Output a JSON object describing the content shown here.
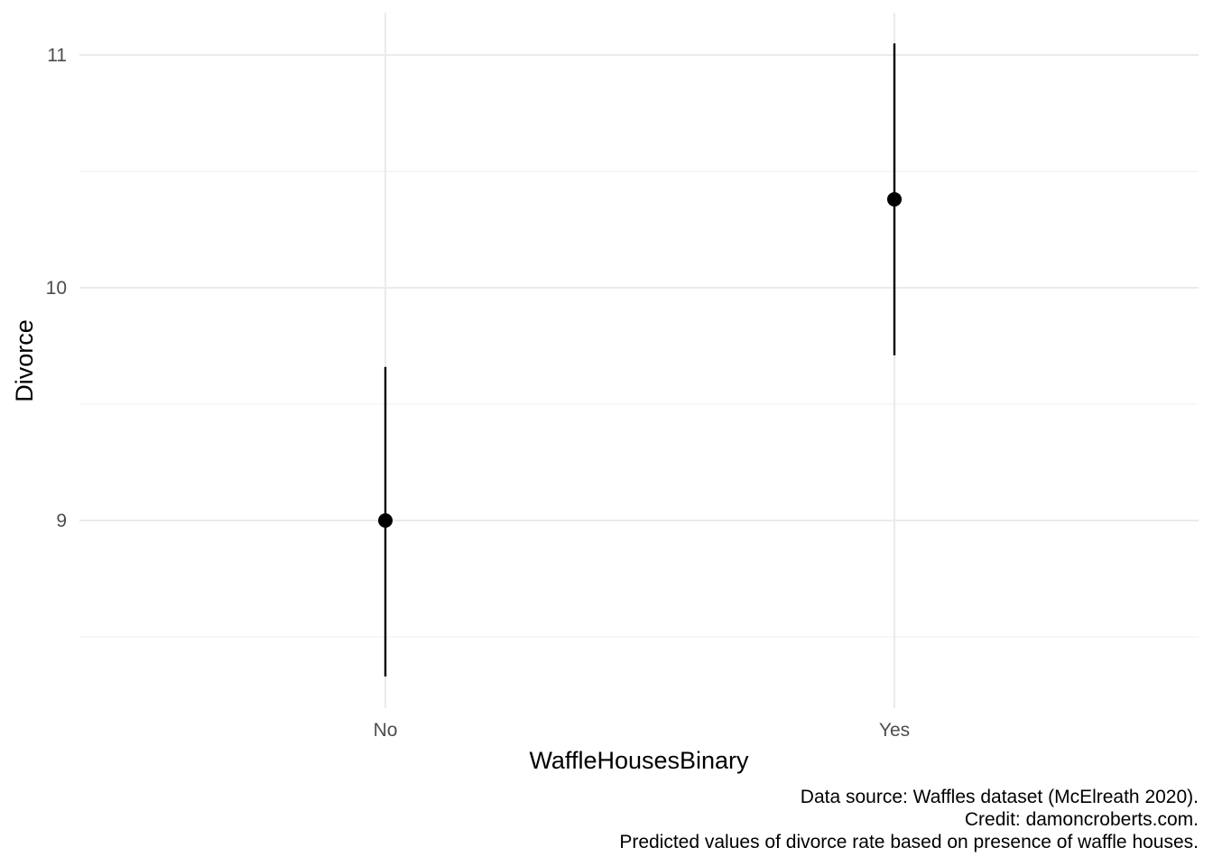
{
  "chart_data": {
    "type": "scatter",
    "subtype": "pointrange",
    "xlabel": "WaffleHousesBinary",
    "ylabel": "Divorce",
    "categories": [
      "No",
      "Yes"
    ],
    "series": [
      {
        "values": [
          9.0,
          10.38
        ],
        "lower": [
          8.33,
          9.71
        ],
        "upper": [
          9.66,
          11.05
        ]
      }
    ],
    "ylim": [
      8.23,
      11.18
    ],
    "yticks": [
      9,
      10,
      11
    ],
    "ytick_labels": [
      "9",
      "10",
      "11"
    ],
    "y_minor_ticks": [
      8.5,
      9.5,
      10.5
    ],
    "grid": true,
    "legend": "none",
    "colors": {
      "point": "#000000",
      "grid_major": "#ebebeb",
      "grid_minor": "#f2f2f2",
      "tick_text": "#4d4d4d"
    },
    "caption": [
      "Data source: Waffles dataset (McElreath 2020).",
      "Credit: damoncroberts.com.",
      "Predicted values of divorce rate based on presence of waffle houses."
    ]
  }
}
